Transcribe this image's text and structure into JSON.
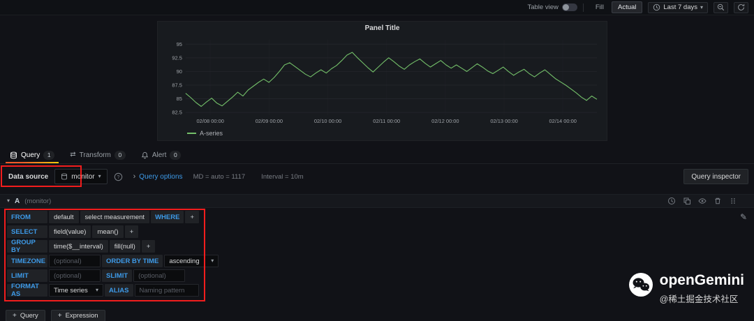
{
  "topbar": {
    "table_view": "Table view",
    "fill": "Fill",
    "actual": "Actual",
    "time_range": "Last 7 days"
  },
  "panel": {
    "title": "Panel Title",
    "legend": "A-series"
  },
  "chart_data": {
    "type": "line",
    "title": "Panel Title",
    "x_ticks": [
      "02/08 00:00",
      "02/09 00:00",
      "02/10 00:00",
      "02/11 00:00",
      "02/12 00:00",
      "02/13 00:00",
      "02/14 00:00"
    ],
    "y_ticks": [
      82.5,
      85,
      87.5,
      90,
      92.5,
      95
    ],
    "ylim": [
      82.0,
      95.8
    ],
    "grid": true,
    "legend_position": "bottom-left",
    "series": [
      {
        "name": "A-series",
        "color": "#73bf69",
        "values": [
          86.0,
          85.2,
          84.3,
          83.6,
          84.4,
          85.1,
          84.2,
          83.7,
          84.5,
          85.3,
          86.2,
          85.5,
          86.6,
          87.3,
          88.0,
          88.6,
          88.0,
          88.9,
          90.0,
          91.2,
          91.6,
          90.9,
          90.2,
          89.5,
          89.0,
          89.7,
          90.3,
          89.7,
          90.5,
          91.1,
          92.0,
          93.0,
          93.5,
          92.5,
          91.6,
          90.7,
          89.9,
          90.8,
          91.7,
          92.5,
          91.8,
          91.0,
          90.4,
          91.2,
          91.8,
          92.3,
          91.5,
          90.8,
          91.4,
          92.0,
          91.2,
          90.6,
          91.2,
          90.6,
          90.0,
          90.7,
          91.4,
          90.8,
          90.1,
          89.6,
          90.2,
          90.8,
          90.0,
          89.3,
          89.9,
          90.4,
          89.6,
          89.0,
          89.7,
          90.3,
          89.5,
          88.7,
          88.1,
          87.5,
          86.8,
          86.1,
          85.3,
          84.7,
          85.5,
          84.9
        ]
      }
    ]
  },
  "tabs": [
    {
      "label": "Query",
      "badge": "1"
    },
    {
      "label": "Transform",
      "badge": "0"
    },
    {
      "label": "Alert",
      "badge": "0"
    }
  ],
  "datasource_bar": {
    "label": "Data source",
    "selected": "monitor",
    "query_options": "Query options",
    "summary_md": "MD = auto = 1117",
    "summary_interval": "Interval = 10m",
    "inspector": "Query inspector"
  },
  "query_editor": {
    "ref_id": "A",
    "hint": "(monitor)",
    "from": {
      "label": "FROM",
      "seg1": "default",
      "seg2": "select measurement",
      "where": "WHERE",
      "plus": "+"
    },
    "select": {
      "label": "SELECT",
      "seg1": "field(value)",
      "seg2": "mean()",
      "plus": "+"
    },
    "group_by": {
      "label": "GROUP BY",
      "seg1": "time($__interval)",
      "seg2": "fill(null)",
      "plus": "+"
    },
    "timezone": {
      "label": "TIMEZONE",
      "placeholder": "(optional)",
      "order_by_label": "ORDER BY TIME",
      "order_by_value": "ascending"
    },
    "limit": {
      "label": "LIMIT",
      "placeholder": "(optional)",
      "slimit_label": "SLIMIT",
      "slimit_placeholder": "(optional)"
    },
    "format": {
      "label": "FORMAT AS",
      "value": "Time series",
      "alias_label": "ALIAS",
      "alias_placeholder": "Naming pattern"
    }
  },
  "footer": {
    "add_query": "Query",
    "add_expression": "Expression"
  },
  "watermark": {
    "title": "openGemini",
    "subtitle": "@稀土掘金技术社区"
  },
  "colors": {
    "accent_blue": "#3d9ae8",
    "series_green": "#73bf69",
    "annotation_red": "#f21d1d"
  }
}
